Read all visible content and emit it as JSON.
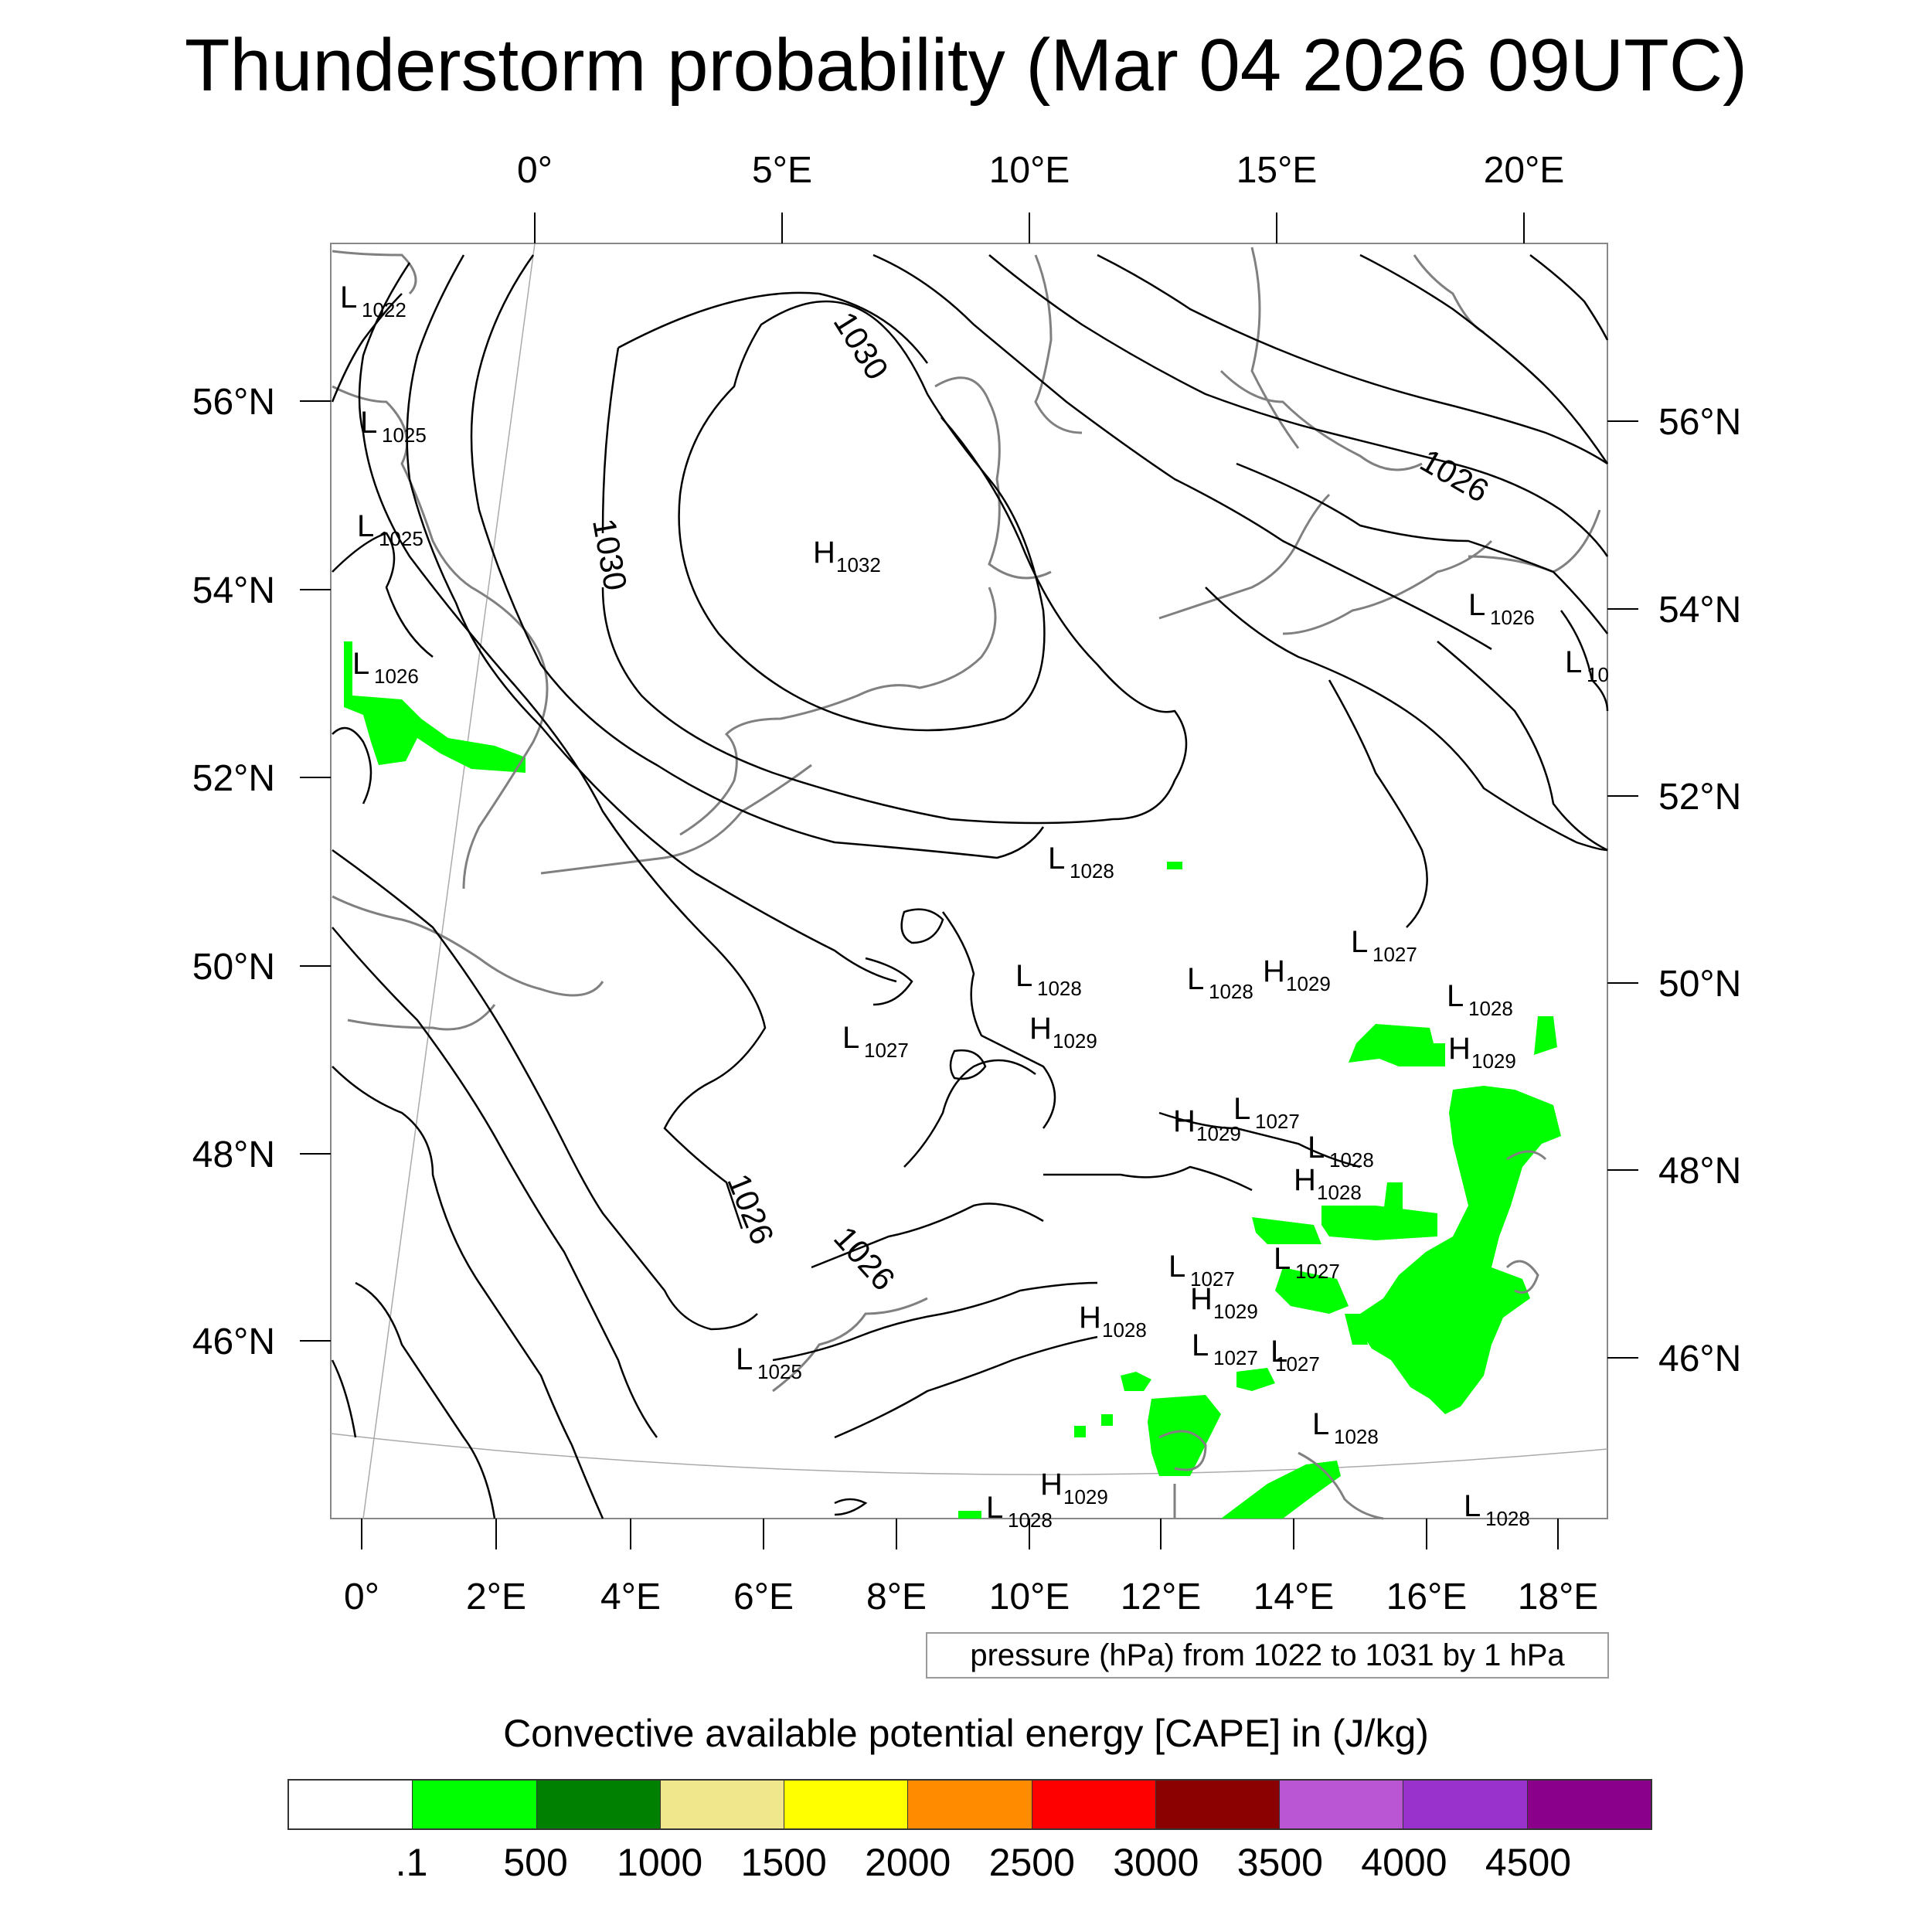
{
  "title": "Thunderstorm probability (Mar 04 2026 09UTC)",
  "top_lon_labels": [
    "0°",
    "5°E",
    "10°E",
    "15°E",
    "20°E"
  ],
  "bottom_lon_labels": [
    "0°",
    "2°E",
    "4°E",
    "6°E",
    "8°E",
    "10°E",
    "12°E",
    "14°E",
    "16°E",
    "18°E"
  ],
  "left_lat_labels": [
    "56°N",
    "54°N",
    "52°N",
    "50°N",
    "48°N",
    "46°N"
  ],
  "right_lat_labels": [
    "56°N",
    "54°N",
    "52°N",
    "50°N",
    "48°N",
    "46°N"
  ],
  "contour_labels": [
    "1030",
    "1030",
    "1026",
    "1026",
    "1026"
  ],
  "pressure_centers": [
    {
      "type": "L",
      "value": "1022"
    },
    {
      "type": "L",
      "value": "1025"
    },
    {
      "type": "L",
      "value": "1025"
    },
    {
      "type": "L",
      "value": "1026"
    },
    {
      "type": "H",
      "value": "1032"
    },
    {
      "type": "L",
      "value": "1026"
    },
    {
      "type": "L",
      "value": "10"
    },
    {
      "type": "L",
      "value": "1028"
    },
    {
      "type": "L",
      "value": "1027"
    },
    {
      "type": "L",
      "value": "1028"
    },
    {
      "type": "L",
      "value": "1028"
    },
    {
      "type": "H",
      "value": "1029"
    },
    {
      "type": "L",
      "value": "1028"
    },
    {
      "type": "H",
      "value": "1029"
    },
    {
      "type": "L",
      "value": "1027"
    },
    {
      "type": "H",
      "value": "1029"
    },
    {
      "type": "H",
      "value": "1029"
    },
    {
      "type": "L",
      "value": "1027"
    },
    {
      "type": "L",
      "value": "1028"
    },
    {
      "type": "H",
      "value": "1028"
    },
    {
      "type": "L",
      "value": "1027"
    },
    {
      "type": "L",
      "value": "1027"
    },
    {
      "type": "H",
      "value": "1029"
    },
    {
      "type": "H",
      "value": "1028"
    },
    {
      "type": "L",
      "value": "1027"
    },
    {
      "type": "L",
      "value": "1025"
    },
    {
      "type": "L",
      "value": "1027"
    },
    {
      "type": "L",
      "value": "1028"
    },
    {
      "type": "H",
      "value": "1029"
    },
    {
      "type": "L",
      "value": "1028"
    },
    {
      "type": "L",
      "value": "1028"
    }
  ],
  "info_box": "pressure (hPa) from 1022 to 1031 by 1 hPa",
  "colorbar": {
    "title": "Convective available potential energy [CAPE] in (J/kg)",
    "colors": [
      "#ffffff",
      "#00ff00",
      "#008000",
      "#f0e68c",
      "#ffff00",
      "#ff8c00",
      "#ff0000",
      "#8b0000",
      "#ba55d3",
      "#9932cc",
      "#8b008b"
    ],
    "labels": [
      ".1",
      "500",
      "1000",
      "1500",
      "2000",
      "2500",
      "3000",
      "3500",
      "4000",
      "4500"
    ]
  },
  "colors": {
    "cape_green": "#00ff00",
    "isobar": "#000000",
    "coastline": "#808080"
  }
}
